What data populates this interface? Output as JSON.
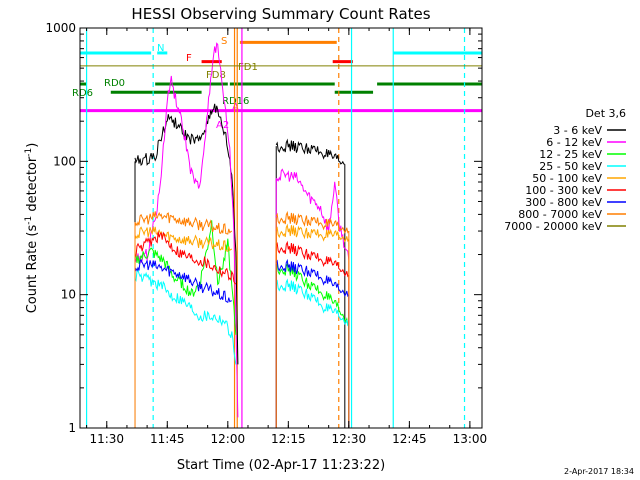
{
  "chart_data": {
    "type": "line",
    "title": "HESSI Observing Summary Count Rates",
    "xlabel": "Start Time (02-Apr-17 11:23:22)",
    "ylabel_main": "Count Rate (s",
    "ylabel_sup1": "-1",
    "ylabel_mid": " detector",
    "ylabel_sup2": "-1",
    "ylabel_end": ")",
    "y_scale": "log",
    "ylim": [
      1,
      1000
    ],
    "xlim": [
      "11:23:22",
      "13:03:00"
    ],
    "x_ticks": [
      "11:30",
      "11:45",
      "12:00",
      "12:15",
      "12:30",
      "12:45",
      "13:00"
    ],
    "y_ticks": [
      "1",
      "10",
      "100",
      "1000"
    ],
    "legend_title": "Det 3,6",
    "legend_position": "right",
    "series": [
      {
        "name": "3 - 6 keV",
        "color": "#000000",
        "points": [
          [
            "11:37:00",
            100
          ],
          [
            "11:39:00",
            102
          ],
          [
            "11:42:00",
            110
          ],
          [
            "11:44:00",
            170
          ],
          [
            "11:45:30",
            215
          ],
          [
            "11:47:00",
            195
          ],
          [
            "11:49:00",
            160
          ],
          [
            "11:51:00",
            145
          ],
          [
            "11:53:00",
            140
          ],
          [
            "11:55:00",
            200
          ],
          [
            "11:56:30",
            265
          ],
          [
            "11:58:00",
            210
          ],
          [
            "11:59:30",
            150
          ],
          [
            "12:01:00",
            80
          ],
          [
            "12:02:00",
            20
          ],
          [
            "12:02:30",
            3
          ]
        ],
        "points_b": [
          [
            "12:12:00",
            130
          ],
          [
            "12:15:00",
            130
          ],
          [
            "12:20:00",
            125
          ],
          [
            "12:24:00",
            115
          ],
          [
            "12:26:00",
            105
          ],
          [
            "12:29:00",
            95
          ]
        ]
      },
      {
        "name": "6 - 12 keV",
        "color": "#ff00ff",
        "points": [
          [
            "11:37:00",
            18
          ],
          [
            "11:40:00",
            20
          ],
          [
            "11:43:00",
            55
          ],
          [
            "11:45:00",
            280
          ],
          [
            "11:46:00",
            420
          ],
          [
            "11:47:00",
            300
          ],
          [
            "11:49:00",
            170
          ],
          [
            "11:51:00",
            80
          ],
          [
            "11:53:00",
            60
          ],
          [
            "11:55:00",
            240
          ],
          [
            "11:56:30",
            680
          ],
          [
            "11:57:30",
            700
          ],
          [
            "11:59:00",
            300
          ],
          [
            "12:00:30",
            120
          ],
          [
            "12:01:30",
            30
          ],
          [
            "12:02:30",
            1.2
          ]
        ],
        "points_b": [
          [
            "12:12:00",
            75
          ],
          [
            "12:14:00",
            80
          ],
          [
            "12:17:00",
            75
          ],
          [
            "12:20:00",
            55
          ],
          [
            "12:23:00",
            45
          ],
          [
            "12:25:00",
            30
          ],
          [
            "12:26:30",
            70
          ],
          [
            "12:27:30",
            35
          ],
          [
            "12:30:00",
            18
          ]
        ]
      },
      {
        "name": "12 - 25 keV",
        "color": "#00ff00",
        "points": [
          [
            "11:37:00",
            18
          ],
          [
            "11:41:00",
            21
          ],
          [
            "11:44:00",
            18
          ],
          [
            "11:47:00",
            13
          ],
          [
            "11:49:00",
            12
          ],
          [
            "11:51:00",
            10
          ],
          [
            "11:53:00",
            12
          ],
          [
            "11:55:00",
            23
          ],
          [
            "11:56:00",
            35
          ],
          [
            "11:57:30",
            12
          ],
          [
            "12:00:00",
            25
          ],
          [
            "12:02:00",
            5
          ]
        ],
        "points_b": [
          [
            "12:12:00",
            16
          ],
          [
            "12:16:00",
            15
          ],
          [
            "12:20:00",
            12
          ],
          [
            "12:24:00",
            10
          ],
          [
            "12:27:00",
            8
          ],
          [
            "12:30:00",
            6
          ]
        ]
      },
      {
        "name": "25 - 50 keV",
        "color": "#00ffff",
        "points": [
          [
            "11:37:00",
            14
          ],
          [
            "11:40:00",
            13
          ],
          [
            "11:43:00",
            12
          ],
          [
            "11:46:00",
            10
          ],
          [
            "11:48:00",
            9.5
          ],
          [
            "11:51:00",
            8
          ],
          [
            "11:53:00",
            7
          ],
          [
            "11:56:00",
            7
          ],
          [
            "11:59:00",
            6.5
          ],
          [
            "12:01:00",
            5
          ],
          [
            "12:02:00",
            3
          ]
        ],
        "points_b": [
          [
            "12:12:00",
            12
          ],
          [
            "12:16:00",
            11.5
          ],
          [
            "12:20:00",
            10
          ],
          [
            "12:24:00",
            8
          ],
          [
            "12:27:00",
            7
          ],
          [
            "12:30:00",
            6
          ]
        ]
      },
      {
        "name": "50 - 100 keV",
        "color": "#ffa500",
        "points": [
          [
            "11:37:00",
            28
          ],
          [
            "11:40:00",
            30
          ],
          [
            "11:43:00",
            29
          ],
          [
            "11:46:00",
            27
          ],
          [
            "11:49:00",
            26
          ],
          [
            "11:52:00",
            25
          ],
          [
            "11:56:00",
            24
          ],
          [
            "11:59:00",
            23
          ],
          [
            "12:01:00",
            22
          ]
        ],
        "points_b": [
          [
            "12:12:00",
            30
          ],
          [
            "12:16:00",
            30
          ],
          [
            "12:20:00",
            29
          ],
          [
            "12:24:00",
            28
          ],
          [
            "12:27:00",
            27
          ],
          [
            "12:30:00",
            26
          ]
        ]
      },
      {
        "name": "100 - 300 keV",
        "color": "#ff0000",
        "points": [
          [
            "11:37:00",
            21
          ],
          [
            "11:40:00",
            24
          ],
          [
            "11:43:00",
            28
          ],
          [
            "11:45:00",
            25
          ],
          [
            "11:48:00",
            21
          ],
          [
            "11:51:00",
            19
          ],
          [
            "11:54:00",
            18
          ],
          [
            "11:57:00",
            16
          ],
          [
            "11:59:00",
            15
          ],
          [
            "12:01:00",
            14
          ],
          [
            "12:02:00",
            12
          ]
        ],
        "points_b": [
          [
            "12:12:00",
            23
          ],
          [
            "12:16:00",
            22
          ],
          [
            "12:20:00",
            20
          ],
          [
            "12:24:00",
            18
          ],
          [
            "12:27:00",
            16
          ],
          [
            "12:30:00",
            14
          ]
        ]
      },
      {
        "name": "300 - 800 keV",
        "color": "#0000ff",
        "points": [
          [
            "11:37:00",
            16
          ],
          [
            "11:40:00",
            17
          ],
          [
            "11:43:00",
            16
          ],
          [
            "11:46:00",
            15
          ],
          [
            "11:49:00",
            14
          ],
          [
            "11:52:00",
            12
          ],
          [
            "11:55:00",
            11
          ],
          [
            "11:58:00",
            10
          ],
          [
            "12:01:00",
            9
          ]
        ],
        "points_b": [
          [
            "12:12:00",
            17
          ],
          [
            "12:16:00",
            16
          ],
          [
            "12:20:00",
            15
          ],
          [
            "12:24:00",
            13
          ],
          [
            "12:27:00",
            11
          ],
          [
            "12:30:00",
            10
          ]
        ]
      },
      {
        "name": "800 - 7000 keV",
        "color": "#ff7f00",
        "points": [
          [
            "11:37:00",
            35
          ],
          [
            "11:40:00",
            37
          ],
          [
            "11:43:00",
            39
          ],
          [
            "11:46:00",
            38
          ],
          [
            "11:49:00",
            36
          ],
          [
            "11:52:00",
            34
          ],
          [
            "11:55:00",
            33
          ],
          [
            "11:58:00",
            31
          ],
          [
            "12:01:00",
            30
          ]
        ],
        "points_b": [
          [
            "12:12:00",
            38
          ],
          [
            "12:16:00",
            37
          ],
          [
            "12:20:00",
            36
          ],
          [
            "12:24:00",
            34
          ],
          [
            "12:27:00",
            32
          ],
          [
            "12:30:00",
            30
          ]
        ]
      },
      {
        "name": "7000 - 20000 keV",
        "color": "#808000",
        "points": [
          [
            "11:23:22",
            520
          ],
          [
            "13:03:00",
            520
          ]
        ],
        "points_b": []
      }
    ],
    "flags": [
      {
        "label": "N",
        "color": "#00ffff",
        "y": 650,
        "segments": [
          [
            "11:23:22",
            "11:41:00"
          ],
          [
            "11:42:30",
            "11:45:00"
          ],
          [
            "12:41:00",
            "13:03:00"
          ]
        ]
      },
      {
        "label": "F",
        "color": "#ff0000",
        "y": 560,
        "segments": [
          [
            "11:53:30",
            "11:58:30"
          ],
          [
            "12:26:00",
            "12:31:00"
          ]
        ]
      },
      {
        "label": "S",
        "color": "#ff7f00",
        "y": 780,
        "segments": [
          [
            "12:03:00",
            "12:27:00"
          ]
        ]
      },
      {
        "label": "FD1",
        "color": "#808000",
        "y": 520,
        "segments": []
      },
      {
        "label": "FD8",
        "color": "#808000",
        "y": 450,
        "segments": []
      },
      {
        "label": "RD0",
        "color": "#008000",
        "y": 380,
        "segments": [
          [
            "11:23:22",
            "11:25:00"
          ],
          [
            "11:42:00",
            "12:00:00"
          ],
          [
            "12:00:30",
            "12:26:30"
          ],
          [
            "12:37:00",
            "13:03:00"
          ]
        ]
      },
      {
        "label": "RD6",
        "color": "#008000",
        "y": 330,
        "segments": [
          [
            "11:31:00",
            "11:53:30"
          ],
          [
            "12:26:30",
            "12:36:00"
          ]
        ]
      },
      {
        "label": "RD16",
        "color": "#008000",
        "y": 280,
        "segments": []
      },
      {
        "label": "A2",
        "color": "#ff00ff",
        "y": 240,
        "segments": [
          [
            "11:23:22",
            "13:03:00"
          ]
        ]
      },
      {
        "label": "A",
        "color": "#ff00ff",
        "y": 230,
        "segments": []
      }
    ],
    "vlines": [
      {
        "t": "11:25:00",
        "color": "#00ffff",
        "style": "solid"
      },
      {
        "t": "11:41:30",
        "color": "#00ffff",
        "style": "dash"
      },
      {
        "t": "12:01:40",
        "color": "#ff7f00",
        "style": "solid"
      },
      {
        "t": "12:02:20",
        "color": "#ff7f00",
        "style": "solid"
      },
      {
        "t": "12:03:30",
        "color": "#ff00ff",
        "style": "solid"
      },
      {
        "t": "12:27:30",
        "color": "#ff7f00",
        "style": "dash"
      },
      {
        "t": "12:30:40",
        "color": "#00ffff",
        "style": "solid"
      },
      {
        "t": "12:41:00",
        "color": "#00ffff",
        "style": "solid"
      },
      {
        "t": "12:58:40",
        "color": "#00ffff",
        "style": "dash"
      }
    ],
    "timestamp": "2-Apr-2017 18:34"
  }
}
